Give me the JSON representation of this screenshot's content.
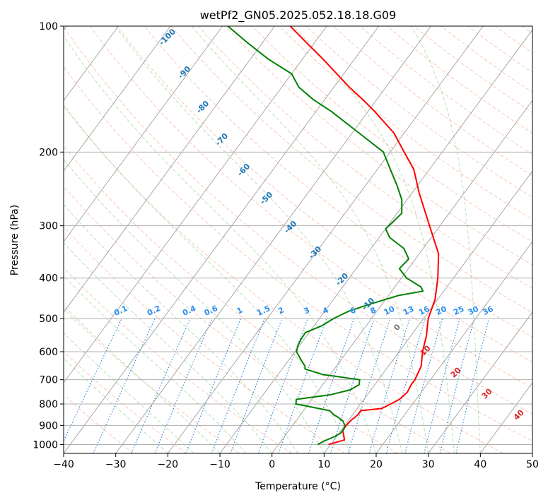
{
  "chart_data": {
    "type": "skew-t",
    "title": "wetPf2_GN05.2025.052.18.18.G09",
    "xlabel": "Temperature (°C)",
    "ylabel": "Pressure (hPa)",
    "xlim": [
      -40,
      50
    ],
    "ylim": [
      1050,
      100
    ],
    "y_scale": "log",
    "grid": true,
    "x_ticks": [
      "−40",
      "−30",
      "−20",
      "−10",
      "0",
      "10",
      "20",
      "30",
      "40",
      "50"
    ],
    "y_ticks": [
      "100",
      "200",
      "300",
      "400",
      "500",
      "600",
      "700",
      "800",
      "900",
      "1000"
    ],
    "isotherm_labels": [
      "-100",
      "-90",
      "-80",
      "-70",
      "-60",
      "-50",
      "-40",
      "-30",
      "-20",
      "-10",
      "0",
      "10",
      "20",
      "30",
      "40"
    ],
    "mixing_ratio_labels": [
      "0.1",
      "0.2",
      "0.4",
      "0.6",
      "1",
      "1.5",
      "2",
      "3",
      "4",
      "6",
      "8",
      "10",
      "13",
      "16",
      "20",
      "25",
      "30",
      "36"
    ],
    "series": [
      {
        "type": "temperature",
        "color": "#ff0000",
        "points": [
          [
            1000,
            9.6
          ],
          [
            975,
            12.0
          ],
          [
            950,
            11.2
          ],
          [
            925,
            10.3
          ],
          [
            900,
            10.3
          ],
          [
            875,
            10.5
          ],
          [
            850,
            11.0
          ],
          [
            830,
            11.0
          ],
          [
            820,
            14.7
          ],
          [
            800,
            15.8
          ],
          [
            780,
            16.8
          ],
          [
            750,
            17.3
          ],
          [
            720,
            17.0
          ],
          [
            700,
            17.0
          ],
          [
            650,
            16.3
          ],
          [
            600,
            14.5
          ],
          [
            550,
            13.0
          ],
          [
            500,
            10.9
          ],
          [
            450,
            9.5
          ],
          [
            400,
            7.0
          ],
          [
            350,
            3.7
          ],
          [
            300,
            -2.0
          ],
          [
            250,
            -8.7
          ],
          [
            220,
            -13.0
          ],
          [
            200,
            -17.3
          ],
          [
            180,
            -22.0
          ],
          [
            160,
            -28.7
          ],
          [
            150,
            -32.6
          ],
          [
            140,
            -37.0
          ],
          [
            120,
            -46.0
          ],
          [
            110,
            -51.3
          ],
          [
            100,
            -57.0
          ]
        ]
      },
      {
        "type": "dewpoint",
        "color": "#008000",
        "points": [
          [
            1000,
            7.5
          ],
          [
            980,
            8.3
          ],
          [
            960,
            9.5
          ],
          [
            940,
            10.3
          ],
          [
            920,
            10.4
          ],
          [
            900,
            10.0
          ],
          [
            880,
            9.1
          ],
          [
            860,
            7.5
          ],
          [
            850,
            6.5
          ],
          [
            830,
            5.0
          ],
          [
            800,
            -2.4
          ],
          [
            780,
            -3.0
          ],
          [
            760,
            3.0
          ],
          [
            740,
            6.0
          ],
          [
            720,
            7.0
          ],
          [
            700,
            6.4
          ],
          [
            680,
            -1.5
          ],
          [
            660,
            -5.6
          ],
          [
            650,
            -6.0
          ],
          [
            630,
            -7.5
          ],
          [
            600,
            -9.7
          ],
          [
            580,
            -10.3
          ],
          [
            560,
            -10.6
          ],
          [
            540,
            -10.7
          ],
          [
            520,
            -8.5
          ],
          [
            500,
            -7.3
          ],
          [
            480,
            -5.4
          ],
          [
            460,
            -2.0
          ],
          [
            440,
            2.0
          ],
          [
            430,
            6.0
          ],
          [
            420,
            5.0
          ],
          [
            400,
            1.0
          ],
          [
            380,
            -1.7
          ],
          [
            360,
            -1.3
          ],
          [
            340,
            -3.7
          ],
          [
            320,
            -8.0
          ],
          [
            305,
            -10.0
          ],
          [
            295,
            -9.6
          ],
          [
            280,
            -9.1
          ],
          [
            260,
            -11.0
          ],
          [
            240,
            -14.0
          ],
          [
            220,
            -17.5
          ],
          [
            200,
            -21.3
          ],
          [
            180,
            -28.7
          ],
          [
            160,
            -37.0
          ],
          [
            150,
            -42.1
          ],
          [
            140,
            -46.7
          ],
          [
            130,
            -50.0
          ],
          [
            120,
            -56.5
          ],
          [
            110,
            -62.6
          ],
          [
            100,
            -69.0
          ]
        ]
      }
    ]
  }
}
